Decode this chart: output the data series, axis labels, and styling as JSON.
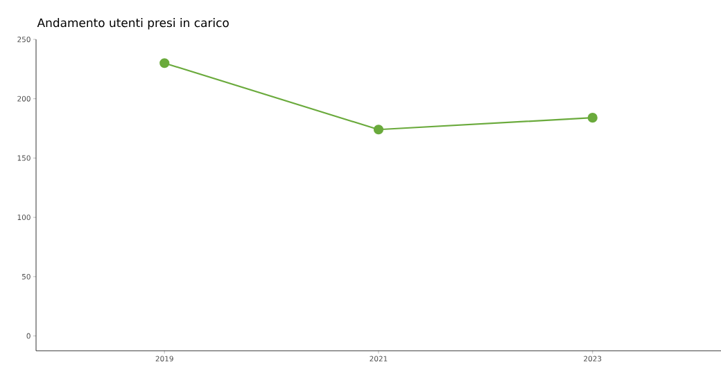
{
  "chart_data": {
    "type": "line",
    "title": "Andamento utenti presi in carico",
    "categories": [
      "2019",
      "2021",
      "2023"
    ],
    "series": [
      {
        "color": "#6aaa3c",
        "values": [
          230,
          174,
          184
        ]
      }
    ],
    "ylim": [
      -12.5,
      250
    ],
    "yticks": [
      0,
      50,
      100,
      150,
      200,
      250
    ],
    "grid": false,
    "marker": "circle",
    "line_style": "solid"
  }
}
